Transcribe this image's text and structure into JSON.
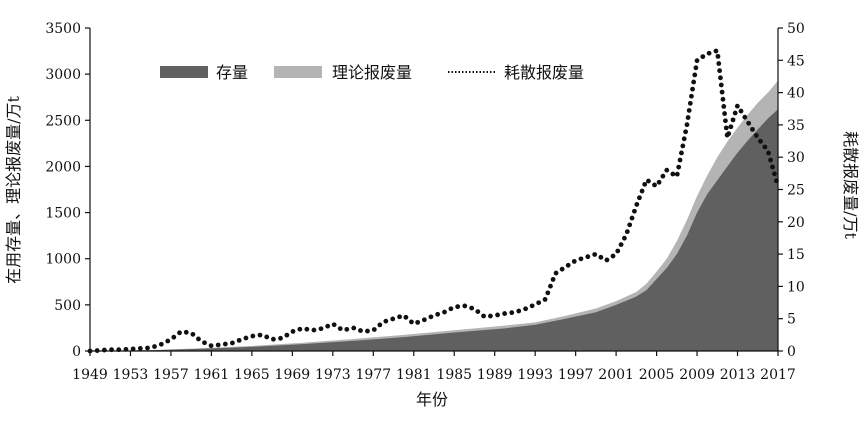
{
  "chart_data": {
    "type": "area",
    "xlabel": "年份",
    "ylabel_left": "在用存量、理论报废量/万t",
    "ylabel_right": "耗散报废量/万t",
    "ylim_left": [
      0,
      3500
    ],
    "ylim_right": [
      0,
      50
    ],
    "xlim": [
      1949,
      2017
    ],
    "x_ticks": [
      1949,
      1953,
      1957,
      1961,
      1965,
      1969,
      1973,
      1977,
      1981,
      1985,
      1989,
      1993,
      1997,
      2001,
      2005,
      2009,
      2013,
      2017
    ],
    "y_ticks_left": [
      0,
      500,
      1000,
      1500,
      2000,
      2500,
      3000,
      3500
    ],
    "y_ticks_right": [
      0,
      5,
      10,
      15,
      20,
      25,
      30,
      35,
      40,
      45,
      50
    ],
    "legend_position": "top",
    "grid": false,
    "series": [
      {
        "name": "存量",
        "axis": "left",
        "style": "area",
        "color": "#606060",
        "points": [
          [
            1949,
            0
          ],
          [
            1955,
            8
          ],
          [
            1960,
            25
          ],
          [
            1965,
            45
          ],
          [
            1970,
            75
          ],
          [
            1975,
            110
          ],
          [
            1980,
            150
          ],
          [
            1985,
            200
          ],
          [
            1990,
            245
          ],
          [
            1993,
            285
          ],
          [
            1996,
            350
          ],
          [
            1999,
            420
          ],
          [
            2001,
            500
          ],
          [
            2003,
            590
          ],
          [
            2004,
            660
          ],
          [
            2005,
            780
          ],
          [
            2006,
            900
          ],
          [
            2007,
            1050
          ],
          [
            2008,
            1250
          ],
          [
            2009,
            1500
          ],
          [
            2010,
            1700
          ],
          [
            2011,
            1850
          ],
          [
            2012,
            2000
          ],
          [
            2013,
            2150
          ],
          [
            2014,
            2280
          ],
          [
            2015,
            2400
          ],
          [
            2016,
            2520
          ],
          [
            2017,
            2620
          ]
        ]
      },
      {
        "name": "理论报废量",
        "axis": "left",
        "style": "area",
        "color": "#b4b4b4",
        "points": [
          [
            1949,
            0
          ],
          [
            1955,
            10
          ],
          [
            1960,
            30
          ],
          [
            1965,
            55
          ],
          [
            1970,
            90
          ],
          [
            1975,
            130
          ],
          [
            1980,
            175
          ],
          [
            1985,
            225
          ],
          [
            1990,
            275
          ],
          [
            1993,
            310
          ],
          [
            1996,
            380
          ],
          [
            1999,
            460
          ],
          [
            2001,
            540
          ],
          [
            2003,
            640
          ],
          [
            2004,
            730
          ],
          [
            2005,
            860
          ],
          [
            2006,
            1000
          ],
          [
            2007,
            1190
          ],
          [
            2008,
            1420
          ],
          [
            2009,
            1680
          ],
          [
            2010,
            1900
          ],
          [
            2011,
            2100
          ],
          [
            2012,
            2270
          ],
          [
            2013,
            2420
          ],
          [
            2014,
            2560
          ],
          [
            2015,
            2690
          ],
          [
            2016,
            2800
          ],
          [
            2017,
            2930
          ]
        ]
      },
      {
        "name": "耗散报废量",
        "axis": "right",
        "style": "dotted-line",
        "color": "#111111",
        "points": [
          [
            1949,
            0
          ],
          [
            1950,
            0.1
          ],
          [
            1951,
            0.2
          ],
          [
            1952,
            0.2
          ],
          [
            1953,
            0.3
          ],
          [
            1954,
            0.4
          ],
          [
            1955,
            0.5
          ],
          [
            1956,
            1
          ],
          [
            1957,
            1.8
          ],
          [
            1958,
            3
          ],
          [
            1959,
            2.8
          ],
          [
            1960,
            1.5
          ],
          [
            1961,
            0.8
          ],
          [
            1962,
            1
          ],
          [
            1963,
            1.2
          ],
          [
            1964,
            1.8
          ],
          [
            1965,
            2.3
          ],
          [
            1966,
            2.5
          ],
          [
            1967,
            1.8
          ],
          [
            1968,
            2
          ],
          [
            1969,
            3
          ],
          [
            1970,
            3.5
          ],
          [
            1971,
            3.2
          ],
          [
            1972,
            3.5
          ],
          [
            1973,
            4.2
          ],
          [
            1974,
            3.2
          ],
          [
            1975,
            3.6
          ],
          [
            1976,
            3
          ],
          [
            1977,
            3.2
          ],
          [
            1978,
            4.5
          ],
          [
            1979,
            5
          ],
          [
            1980,
            5.5
          ],
          [
            1981,
            4.2
          ],
          [
            1982,
            4.8
          ],
          [
            1983,
            5.5
          ],
          [
            1984,
            6
          ],
          [
            1985,
            6.8
          ],
          [
            1986,
            7
          ],
          [
            1987,
            6.5
          ],
          [
            1988,
            5.3
          ],
          [
            1989,
            5.5
          ],
          [
            1990,
            5.8
          ],
          [
            1991,
            6
          ],
          [
            1992,
            6.5
          ],
          [
            1993,
            7.2
          ],
          [
            1994,
            8
          ],
          [
            1995,
            12
          ],
          [
            1996,
            13
          ],
          [
            1997,
            14
          ],
          [
            1998,
            14.5
          ],
          [
            1999,
            15
          ],
          [
            2000,
            14
          ],
          [
            2001,
            15
          ],
          [
            2002,
            18
          ],
          [
            2003,
            22.5
          ],
          [
            2004,
            26.5
          ],
          [
            2005,
            25.5
          ],
          [
            2006,
            28
          ],
          [
            2007,
            27
          ],
          [
            2008,
            35
          ],
          [
            2009,
            45
          ],
          [
            2010,
            46
          ],
          [
            2011,
            46.5
          ],
          [
            2012,
            33
          ],
          [
            2013,
            38
          ],
          [
            2014,
            35.5
          ],
          [
            2015,
            33
          ],
          [
            2016,
            31
          ],
          [
            2017,
            25.5
          ]
        ]
      }
    ]
  }
}
